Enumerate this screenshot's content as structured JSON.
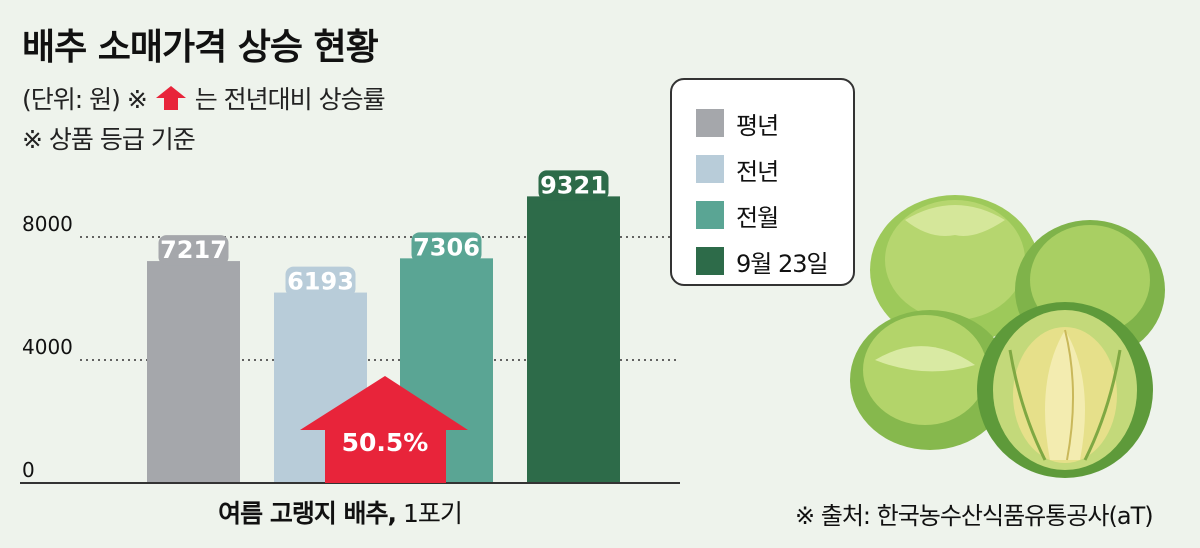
{
  "title": "배추 소매가격 상승 현황",
  "notes": {
    "unit_prefix": "(단위: 원) ※",
    "unit_suffix": "는 전년대비 상승률",
    "grade": "※ 상품 등급 기준"
  },
  "source": "※ 출처: 한국농수산식품유통공사(aT)",
  "xlabel_bold": "여름 고랭지 배추,",
  "xlabel_unit": "1포기",
  "colors": {
    "avg_year": "#a5a7ab",
    "prev_year": "#b8ccd9",
    "prev_month": "#5aa594",
    "current": "#2d6b49",
    "arrow": "#e8243a"
  },
  "legend": [
    {
      "label": "평년",
      "color": "#a5a7ab"
    },
    {
      "label": "전년",
      "color": "#b8ccd9"
    },
    {
      "label": "전월",
      "color": "#5aa594"
    },
    {
      "label": "9월 23일",
      "color": "#2d6b49"
    }
  ],
  "increase_label": "50.5%",
  "chart_data": {
    "type": "bar",
    "categories": [
      "평년",
      "전년",
      "전월",
      "9월 23일"
    ],
    "values": [
      7217,
      6193,
      7306,
      9321
    ],
    "value_labels": [
      "7217",
      "6193",
      "7306",
      "9321"
    ],
    "yticks": [
      0,
      4000,
      8000
    ],
    "ylim": [
      0,
      10000
    ],
    "grid": true,
    "legend_position": "top-right",
    "annotation": {
      "text": "50.5%",
      "meaning": "전년대비 상승률",
      "icon": "up-arrow-icon"
    }
  }
}
